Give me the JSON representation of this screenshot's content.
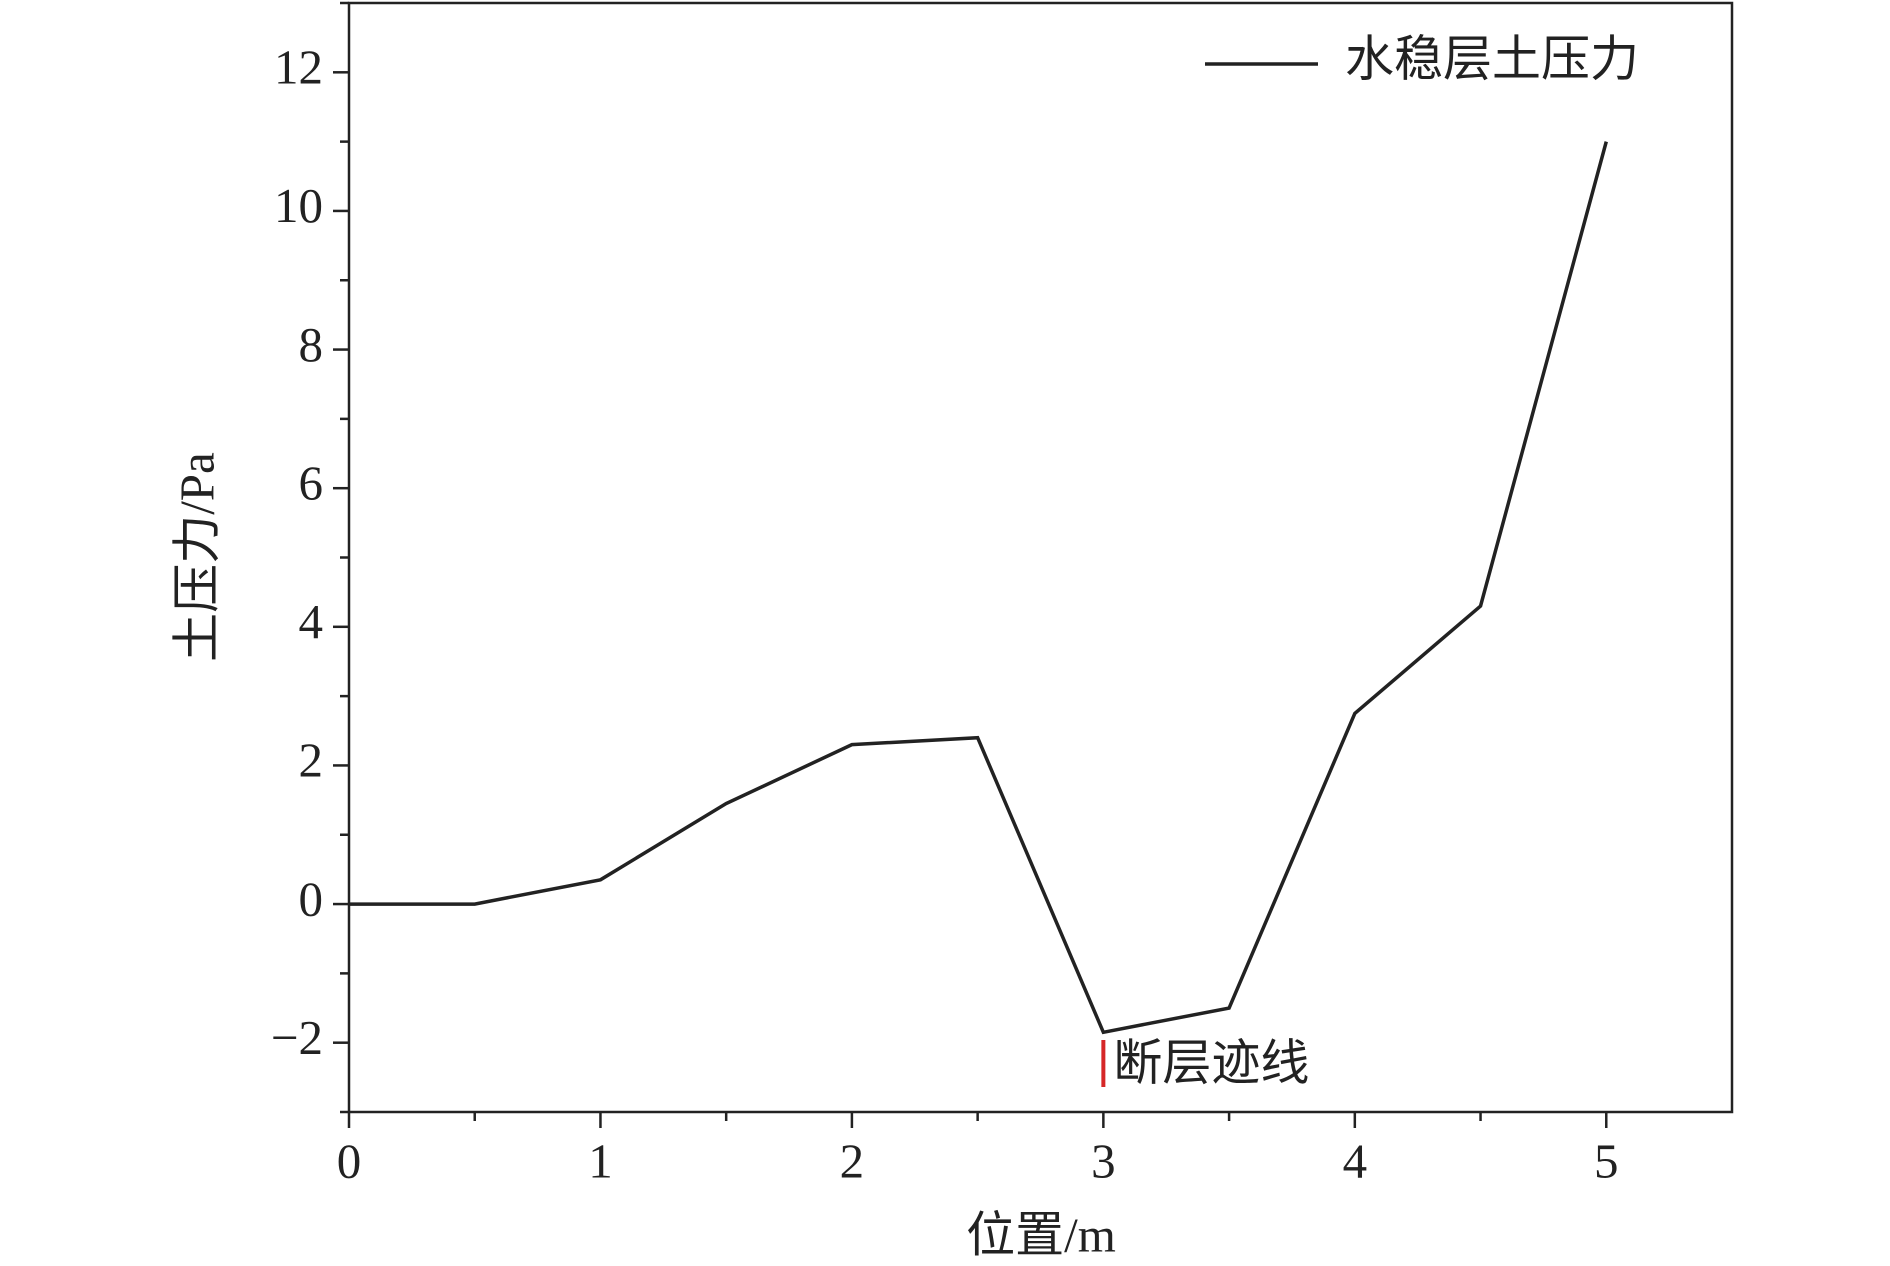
{
  "chart_data": {
    "type": "line",
    "x_label": "位置/m",
    "y_label": "土压力/Pa",
    "x": [
      0,
      0.5,
      1,
      1.5,
      2,
      2.5,
      3,
      3.5,
      4,
      4.5,
      5
    ],
    "series": [
      {
        "name": "水稳层土压力",
        "color": "#222222",
        "values": [
          0,
          0,
          0.35,
          1.45,
          2.3,
          2.4,
          -1.85,
          -1.5,
          2.75,
          4.3,
          11
        ]
      }
    ],
    "xlim": [
      0,
      5.5
    ],
    "ylim": [
      -3,
      13
    ],
    "xticks": [
      0,
      1,
      2,
      3,
      4,
      5
    ],
    "yticks": [
      {
        "value": -2,
        "label": "−2"
      },
      0,
      2,
      4,
      6,
      8,
      10,
      12
    ],
    "xminorticks": [
      0.5,
      1.5,
      2.5,
      3.5,
      4.5
    ],
    "yminorticks": [
      -3,
      -1,
      1,
      3,
      5,
      7,
      9,
      11,
      13
    ],
    "legend": "upper right",
    "annotations": [
      {
        "text": "断层迹线",
        "x": 3,
        "color": "#d62728"
      }
    ]
  }
}
